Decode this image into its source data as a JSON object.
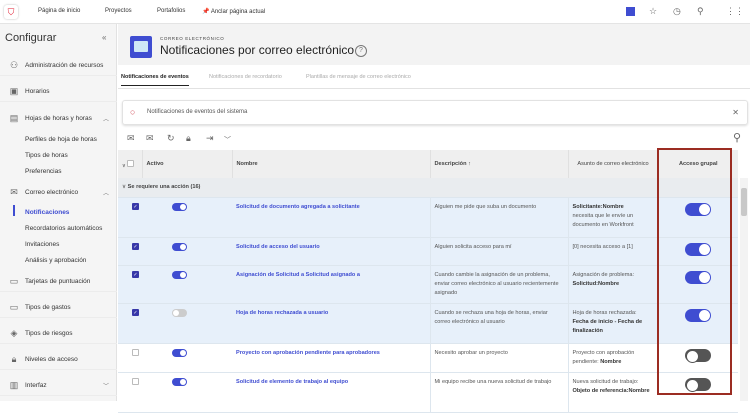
{
  "topbar": {
    "nav": [
      "Página de inicio",
      "Proyectos",
      "Portafolios"
    ],
    "pin": "Anclar página actual",
    "icons": [
      "user-icon",
      "star-icon",
      "history-icon",
      "search-icon",
      "apps-icon"
    ]
  },
  "sidebar": {
    "title": "Configurar",
    "items": [
      {
        "label": "Administración de recursos",
        "icon": "people-icon"
      },
      {
        "label": "Horarios",
        "icon": "calendar-icon"
      },
      {
        "label": "Hojas de horas y horas",
        "icon": "timesheet-icon",
        "sub": [
          "Perfiles de hoja de horas",
          "Tipos de horas",
          "Preferencias"
        ]
      },
      {
        "label": "Correo electrónico",
        "icon": "mail-icon",
        "sub": [
          "Notificaciones",
          "Recordatorios automáticos",
          "Invitaciones",
          "Análisis y aprobación"
        ]
      },
      {
        "label": "Tarjetas de puntuación",
        "icon": "scorecard-icon"
      },
      {
        "label": "Tipos de gastos",
        "icon": "expense-icon"
      },
      {
        "label": "Tipos de riesgos",
        "icon": "risk-icon"
      },
      {
        "label": "Niveles de acceso",
        "icon": "lock-icon"
      },
      {
        "label": "Interfaz",
        "icon": "layout-icon"
      }
    ]
  },
  "header": {
    "kicker": "CORREO ELECTRÓNICO",
    "title": "Notificaciones por correo electrónico"
  },
  "tabs": [
    "Notificaciones de eventos",
    "Notificaciones de recordatorio",
    "Plantillas de mensaje de correo electrónico"
  ],
  "search": {
    "value": "Notificaciones de eventos del sistema"
  },
  "table": {
    "columns": [
      "Activo",
      "Nombre",
      "Descripción ↑",
      "Asunto de correo electrónico",
      "Acceso grupal"
    ],
    "group": "Se requiere una acción (16)",
    "rows": [
      {
        "checked": true,
        "active": true,
        "name": "Solicitud de documento agregada a solicitante",
        "desc": "Alguien me pide que suba un documento",
        "subject_bold": "Solicitante:Nombre",
        "subject": "necesita que le envíe un documento en Workfront",
        "group": true
      },
      {
        "checked": true,
        "active": true,
        "name": "Solicitud de acceso del usuario",
        "desc": "Alguien solicita acceso para mí",
        "subject": "[0] necesita acceso a [1]",
        "group": true
      },
      {
        "checked": true,
        "active": true,
        "name": "Asignación de Solicitud a Solicitud asignado a",
        "desc": "Cuando cambie la asignación de un problema, enviar correo electrónico al usuario recientemente asignado",
        "subject": "Asignación de problema:",
        "subject_bold": "Solicitud:Nombre",
        "group": true
      },
      {
        "checked": true,
        "active": false,
        "name": "Hoja de horas rechazada a usuario",
        "desc": "Cuando se rechaza una hoja de horas, enviar correo electrónico al usuario",
        "subject": "Hoja de horas rechazada:",
        "subject_bold": "Fecha de inicio - Fecha de finalización",
        "group": true
      },
      {
        "checked": false,
        "active": true,
        "name": "Proyecto con aprobación pendiente para aprobadores",
        "desc": "Necesito aprobar un proyecto",
        "subject": "Proyecto con aprobación pendiente:",
        "subject_bold": "Nombre",
        "group": false
      },
      {
        "checked": false,
        "active": true,
        "name": "Solicitud de elemento de trabajo al equipo",
        "desc": "Mi equipo recibe una nueva solicitud de trabajo",
        "subject": "Nueva solicitud de trabajo:",
        "subject_bold": "Objeto de referencia:Nombre",
        "group": false
      }
    ]
  }
}
